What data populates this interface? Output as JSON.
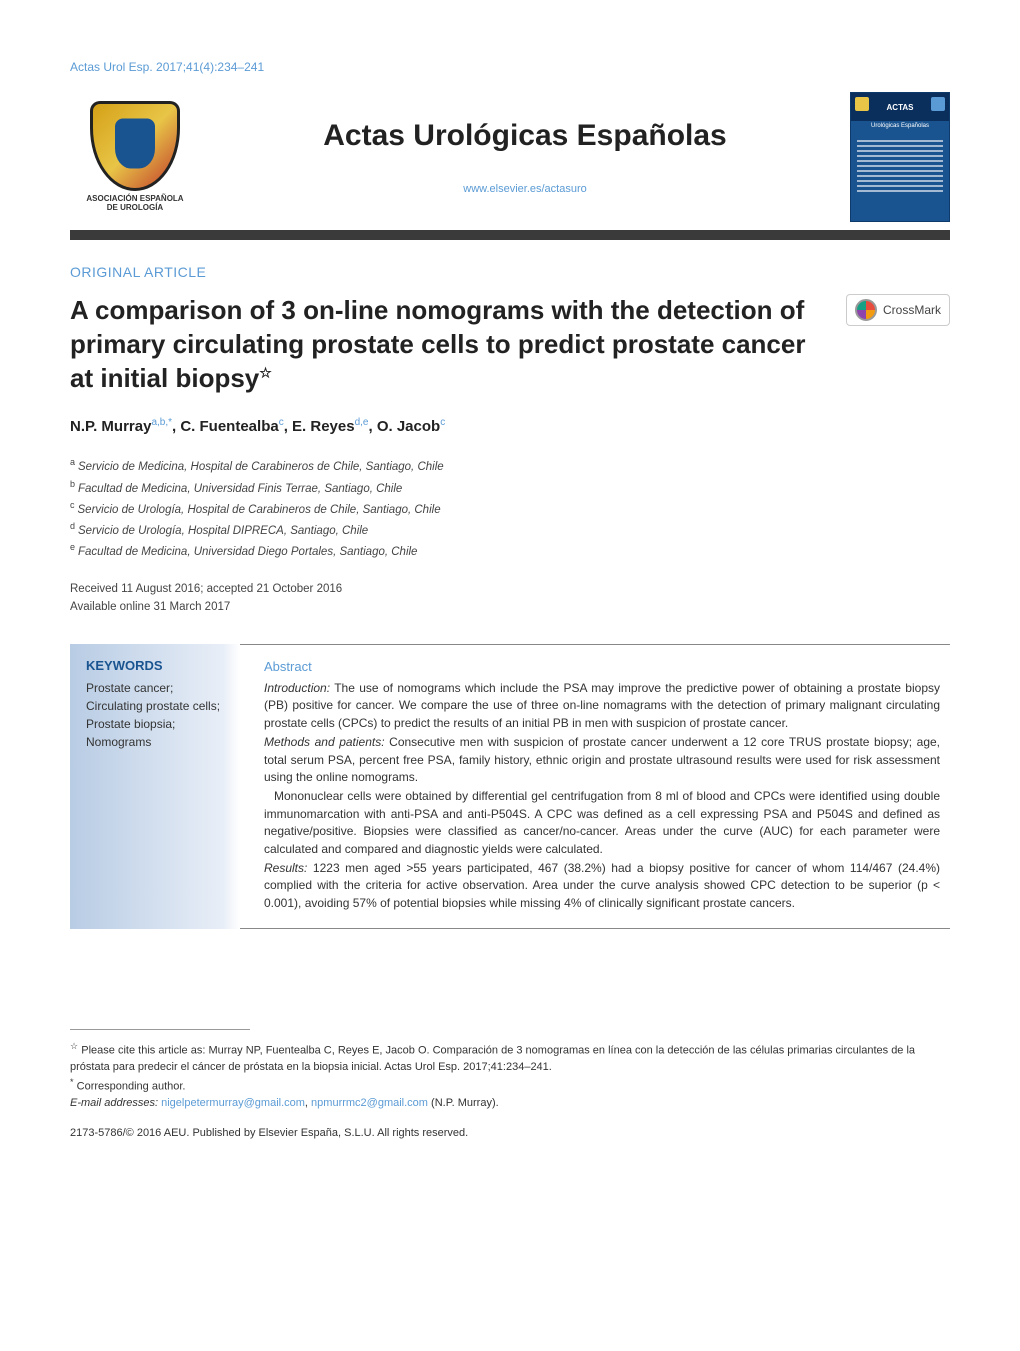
{
  "citation": "Actas Urol Esp. 2017;41(4):234–241",
  "journal": {
    "title": "Actas Urológicas Españolas",
    "url": "www.elsevier.es/actasuro",
    "association_line1": "ASOCIACIÓN ESPAÑOLA",
    "association_line2": "DE UROLOGÍA",
    "cover_label": "ACTAS",
    "cover_sub": "Urológicas Españolas"
  },
  "article": {
    "section_type": "ORIGINAL ARTICLE",
    "title": "A comparison of 3 on-line nomograms with the detection of primary circulating prostate cells to predict prostate cancer at initial biopsy",
    "star": "☆",
    "crossmark_label": "CrossMark",
    "authors_html": "N.P. Murray",
    "authors": [
      {
        "name": "N.P. Murray",
        "marks": "a,b,*"
      },
      {
        "name": "C. Fuentealba",
        "marks": "c"
      },
      {
        "name": "E. Reyes",
        "marks": "d,e"
      },
      {
        "name": "O. Jacob",
        "marks": "c"
      }
    ],
    "affiliations": [
      {
        "mark": "a",
        "text": "Servicio de Medicina, Hospital de Carabineros de Chile, Santiago, Chile"
      },
      {
        "mark": "b",
        "text": "Facultad de Medicina, Universidad Finis Terrae, Santiago, Chile"
      },
      {
        "mark": "c",
        "text": "Servicio de Urología, Hospital de Carabineros de Chile, Santiago, Chile"
      },
      {
        "mark": "d",
        "text": "Servicio de Urología, Hospital DIPRECA, Santiago, Chile"
      },
      {
        "mark": "e",
        "text": "Facultad de Medicina, Universidad Diego Portales, Santiago, Chile"
      }
    ],
    "received": "Received 11 August 2016; accepted 21 October 2016",
    "available": "Available online 31 March 2017"
  },
  "keywords": {
    "heading": "KEYWORDS",
    "items": "Prostate cancer;\nCirculating prostate cells;\nProstate biopsia;\nNomograms"
  },
  "abstract": {
    "heading": "Abstract",
    "sections": [
      {
        "label": "Introduction:",
        "text": " The use of nomograms which include the PSA may improve the predictive power of obtaining a prostate biopsy (PB) positive for cancer. We compare the use of three on-line nomagrams with the detection of primary malignant circulating prostate cells (CPCs) to predict the results of an initial PB in men with suspicion of prostate cancer."
      },
      {
        "label": "Methods and patients:",
        "text": " Consecutive men with suspicion of prostate cancer underwent a 12 core TRUS prostate biopsy; age, total serum PSA, percent free PSA, family history, ethnic origin and prostate ultrasound results were used for risk assessment using the online nomograms."
      },
      {
        "label": "",
        "text": "Mononuclear cells were obtained by differential gel centrifugation from 8 ml of blood and CPCs were identified using double immunomarcation with anti-PSA and anti-P504S. A CPC was defined as a cell expressing PSA and P504S and defined as negative/positive. Biopsies were classified as cancer/no-cancer. Areas under the curve (AUC) for each parameter were calculated and compared and diagnostic yields were calculated."
      },
      {
        "label": "Results:",
        "text": " 1223 men aged >55 years participated, 467 (38.2%) had a biopsy positive for cancer of whom 114/467 (24.4%) complied with the criteria for active observation. Area under the curve analysis showed CPC detection to be superior (p < 0.001), avoiding 57% of potential biopsies while missing 4% of clinically significant prostate cancers."
      }
    ]
  },
  "footnotes": {
    "cite_as_label": "☆",
    "cite_as": " Please cite this article as: Murray NP, Fuentealba C, Reyes E, Jacob O. Comparación de 3 nomogramas en línea con la detección de las células primarias circulantes de la próstata para predecir el cáncer de próstata en la biopsia inicial. Actas Urol Esp. 2017;41:234–241.",
    "corresponding_label": "*",
    "corresponding": " Corresponding author.",
    "email_label": "E-mail addresses: ",
    "email1": "nigelpetermurray@gmail.com",
    "email_sep": ", ",
    "email2": "npmurrmc2@gmail.com",
    "email_tail": " (N.P. Murray)."
  },
  "copyright": "2173-5786/© 2016 AEU. Published by Elsevier España, S.L.U. All rights reserved.",
  "colors": {
    "link": "#5b9bd5",
    "rule": "#3a3a3a",
    "keywords_bg_from": "#b8cce4",
    "cover_bg": "#1a5490"
  }
}
